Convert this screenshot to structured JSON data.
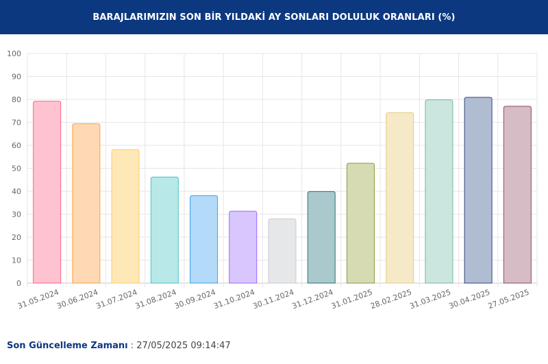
{
  "header": {
    "title": "BARAJLARIMIZIN SON BİR YILDAKİ AY SONLARI DOLULUK ORANLARI (%)"
  },
  "chart_data": {
    "type": "bar",
    "title": "BARAJLARIMIZIN SON BİR YILDAKİ AY SONLARI DOLULUK ORANLARI (%)",
    "categories": [
      "31.05.2024",
      "30.06.2024",
      "31.07.2024",
      "31.08.2024",
      "30.09.2024",
      "31.10.2024",
      "30.11.2024",
      "31.12.2024",
      "31.01.2025",
      "28.02.2025",
      "31.03.2025",
      "30.04.2025",
      "27.05.2025"
    ],
    "values": [
      79.2,
      69.4,
      58.1,
      46.2,
      38.1,
      31.3,
      28.0,
      39.9,
      52.2,
      74.2,
      79.8,
      80.9,
      77.0
    ],
    "ylim": [
      0,
      100
    ],
    "yticks": [
      0,
      10,
      20,
      30,
      40,
      50,
      60,
      70,
      80,
      90,
      100
    ],
    "grid": true,
    "legend": "none",
    "colors": [
      {
        "fill": "#ffc2d0",
        "stroke": "#ff6384"
      },
      {
        "fill": "#ffd9b3",
        "stroke": "#ff9f40"
      },
      {
        "fill": "#ffe8b8",
        "stroke": "#ffcd56"
      },
      {
        "fill": "#b8e8e8",
        "stroke": "#4bc0c0"
      },
      {
        "fill": "#b3daf8",
        "stroke": "#36a2eb"
      },
      {
        "fill": "#d9c6ff",
        "stroke": "#9966ff"
      },
      {
        "fill": "#e6e7e9",
        "stroke": "#c9cbcf"
      },
      {
        "fill": "#a9c9cc",
        "stroke": "#2f6f75"
      },
      {
        "fill": "#d6dbb3",
        "stroke": "#8a9a3a"
      },
      {
        "fill": "#f5e9c8",
        "stroke": "#e8cc7a"
      },
      {
        "fill": "#cbe6de",
        "stroke": "#6fb8a0"
      },
      {
        "fill": "#b0bcd2",
        "stroke": "#2d4a7a"
      },
      {
        "fill": "#d6bcc4",
        "stroke": "#8d4a5c"
      }
    ]
  },
  "footer": {
    "label": "Son Güncelleme Zamanı",
    "separator": " : ",
    "value": "27/05/2025 09:14:47"
  }
}
